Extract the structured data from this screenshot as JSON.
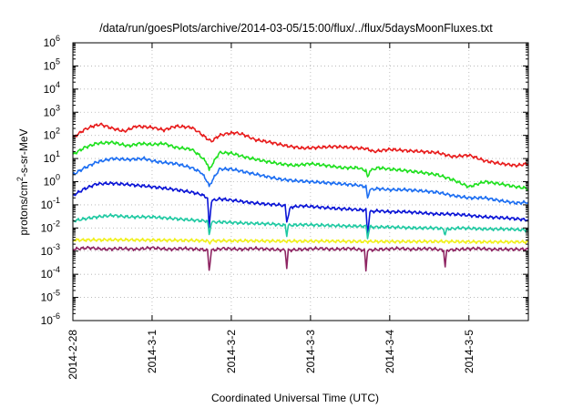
{
  "chart_data": {
    "type": "line",
    "title": "/data/run/goesPlots/archive/2014-03-05/15:00/flux/../flux/5daysMoonFluxes.txt",
    "xlabel": "Coordinated Universal Time (UTC)",
    "ylabel_main": "protons/cm",
    "ylabel_sup": "2",
    "ylabel_rest": "-s-sr-MeV",
    "y_scale": "log",
    "ylim": [
      1e-06,
      1000000.0
    ],
    "xlim": [
      0,
      5.75
    ],
    "x_unit": "days since 2014-2-28 00:00 UTC",
    "grid": true,
    "legend": "none",
    "x_ticks": [
      {
        "x": 0,
        "label": "2014-2-28"
      },
      {
        "x": 1,
        "label": "2014-3-1"
      },
      {
        "x": 2,
        "label": "2014-3-2"
      },
      {
        "x": 3,
        "label": "2014-3-3"
      },
      {
        "x": 4,
        "label": "2014-3-4"
      },
      {
        "x": 5,
        "label": "2014-3-5"
      }
    ],
    "y_ticks": [
      {
        "exp": -6,
        "label_base": "10",
        "label_exp": "-6"
      },
      {
        "exp": -5,
        "label_base": "10",
        "label_exp": "-5"
      },
      {
        "exp": -4,
        "label_base": "10",
        "label_exp": "-4"
      },
      {
        "exp": -3,
        "label_base": "10",
        "label_exp": "-3"
      },
      {
        "exp": -2,
        "label_base": "10",
        "label_exp": "-2"
      },
      {
        "exp": -1,
        "label_base": "10",
        "label_exp": "-1"
      },
      {
        "exp": 0,
        "label_base": "10",
        "label_exp": "0"
      },
      {
        "exp": 1,
        "label_base": "10",
        "label_exp": "1"
      },
      {
        "exp": 2,
        "label_base": "10",
        "label_exp": "2"
      },
      {
        "exp": 3,
        "label_base": "10",
        "label_exp": "3"
      },
      {
        "exp": 4,
        "label_base": "10",
        "label_exp": "4"
      },
      {
        "exp": 5,
        "label_base": "10",
        "label_exp": "5"
      },
      {
        "exp": 6,
        "label_base": "10",
        "label_exp": "6"
      }
    ],
    "series": [
      {
        "color": "#e81c1c",
        "x": [
          0,
          0.15,
          0.25,
          0.35,
          0.5,
          0.65,
          0.8,
          1.0,
          1.15,
          1.3,
          1.5,
          1.6,
          1.7,
          1.75,
          1.85,
          1.95,
          2.05,
          2.15,
          2.3,
          2.5,
          2.7,
          2.9,
          3.1,
          3.3,
          3.5,
          3.7,
          3.8,
          4.0,
          4.2,
          4.4,
          4.6,
          4.8,
          5.0,
          5.2,
          5.4,
          5.6,
          5.75
        ],
        "values": [
          80,
          180,
          250,
          300,
          200,
          150,
          250,
          220,
          170,
          250,
          220,
          130,
          70,
          55,
          100,
          120,
          130,
          110,
          65,
          50,
          35,
          28,
          30,
          33,
          30,
          27,
          20,
          25,
          22,
          20,
          18,
          12,
          14,
          8,
          6,
          5,
          6
        ]
      },
      {
        "color": "#1fe01f",
        "x": [
          0,
          0.15,
          0.3,
          0.5,
          0.7,
          0.85,
          1.0,
          1.15,
          1.3,
          1.5,
          1.62,
          1.7,
          1.72,
          1.75,
          1.85,
          2.0,
          2.2,
          2.4,
          2.6,
          2.8,
          3.0,
          3.2,
          3.4,
          3.6,
          3.7,
          3.72,
          3.75,
          3.85,
          4.0,
          4.2,
          4.4,
          4.6,
          4.8,
          5.0,
          5.2,
          5.4,
          5.6,
          5.75
        ],
        "values": [
          15,
          30,
          45,
          50,
          35,
          45,
          40,
          45,
          30,
          25,
          12,
          6,
          3,
          5,
          18,
          17,
          11,
          8,
          6,
          5,
          6,
          5,
          4,
          4,
          3,
          1.5,
          3,
          4,
          3.5,
          3,
          2.5,
          2,
          1.2,
          0.6,
          1.0,
          0.8,
          0.6,
          0.5
        ]
      },
      {
        "color": "#1c6ef2",
        "x": [
          0,
          0.15,
          0.3,
          0.5,
          0.7,
          0.9,
          1.0,
          1.1,
          1.3,
          1.5,
          1.62,
          1.7,
          1.72,
          1.75,
          1.85,
          2.0,
          2.2,
          2.4,
          2.6,
          2.8,
          3.0,
          3.2,
          3.4,
          3.6,
          3.7,
          3.72,
          3.75,
          3.85,
          4.0,
          4.2,
          4.4,
          4.6,
          4.8,
          5.0,
          5.2,
          5.4,
          5.6,
          5.75
        ],
        "values": [
          2,
          4,
          7,
          10,
          9,
          10,
          8,
          7,
          6,
          4,
          2.5,
          1.0,
          0.6,
          1.0,
          3.5,
          3.5,
          2.5,
          1.8,
          1.3,
          1.1,
          1.0,
          0.9,
          0.8,
          0.7,
          0.6,
          0.2,
          0.45,
          0.5,
          0.45,
          0.45,
          0.4,
          0.35,
          0.25,
          0.2,
          0.2,
          0.15,
          0.12,
          0.13
        ]
      },
      {
        "color": "#0a14d6",
        "x": [
          0,
          0.15,
          0.3,
          0.5,
          0.7,
          0.9,
          1.1,
          1.3,
          1.5,
          1.62,
          1.7,
          1.72,
          1.75,
          1.85,
          2.0,
          2.2,
          2.4,
          2.6,
          2.68,
          2.7,
          2.75,
          2.9,
          3.1,
          3.3,
          3.5,
          3.65,
          3.7,
          3.72,
          3.75,
          3.85,
          4.0,
          4.2,
          4.4,
          4.6,
          4.8,
          5.0,
          5.2,
          5.4,
          5.6,
          5.75
        ],
        "values": [
          0.25,
          0.5,
          0.8,
          0.85,
          0.75,
          0.65,
          0.55,
          0.45,
          0.35,
          0.28,
          0.2,
          0.01,
          0.15,
          0.18,
          0.16,
          0.13,
          0.11,
          0.1,
          0.09,
          0.02,
          0.08,
          0.09,
          0.08,
          0.07,
          0.065,
          0.06,
          0.06,
          0.005,
          0.05,
          0.055,
          0.05,
          0.05,
          0.045,
          0.04,
          0.04,
          0.035,
          0.03,
          0.028,
          0.025,
          0.022
        ]
      },
      {
        "color": "#1fc9a2",
        "x": [
          0,
          0.15,
          0.3,
          0.5,
          0.7,
          1.0,
          1.3,
          1.5,
          1.7,
          1.72,
          1.75,
          1.9,
          2.2,
          2.5,
          2.68,
          2.7,
          2.72,
          2.9,
          3.2,
          3.5,
          3.7,
          3.72,
          3.75,
          4.0,
          4.3,
          4.6,
          4.68,
          4.7,
          4.72,
          4.9,
          5.2,
          5.5,
          5.75
        ],
        "values": [
          0.02,
          0.025,
          0.03,
          0.035,
          0.03,
          0.03,
          0.025,
          0.022,
          0.02,
          0.005,
          0.018,
          0.018,
          0.016,
          0.015,
          0.013,
          0.005,
          0.013,
          0.014,
          0.013,
          0.012,
          0.012,
          0.004,
          0.011,
          0.011,
          0.01,
          0.01,
          0.009,
          0.005,
          0.009,
          0.01,
          0.009,
          0.009,
          0.008
        ]
      },
      {
        "color": "#f0f01c",
        "x": [
          0,
          0.5,
          1.0,
          1.5,
          1.7,
          1.72,
          1.75,
          2.2,
          2.7,
          3.2,
          3.7,
          4.2,
          4.7,
          5.2,
          5.75
        ],
        "values": [
          0.003,
          0.0031,
          0.003,
          0.0029,
          0.0028,
          0.0022,
          0.0028,
          0.0028,
          0.0027,
          0.0027,
          0.0026,
          0.0026,
          0.0026,
          0.0025,
          0.0025
        ]
      },
      {
        "color": "#8e2462",
        "x": [
          0,
          0.2,
          0.4,
          0.6,
          0.8,
          1.0,
          1.2,
          1.4,
          1.6,
          1.7,
          1.72,
          1.75,
          1.9,
          2.1,
          2.3,
          2.5,
          2.68,
          2.7,
          2.72,
          2.9,
          3.1,
          3.3,
          3.5,
          3.68,
          3.7,
          3.72,
          3.9,
          4.1,
          4.3,
          4.5,
          4.68,
          4.7,
          4.72,
          4.9,
          5.1,
          5.3,
          5.5,
          5.75
        ],
        "values": [
          0.0012,
          0.0014,
          0.0012,
          0.0013,
          0.0012,
          0.0014,
          0.0012,
          0.0013,
          0.0012,
          0.0011,
          0.00015,
          0.0011,
          0.0013,
          0.0012,
          0.0013,
          0.0012,
          0.0011,
          0.0002,
          0.0011,
          0.0012,
          0.0013,
          0.0012,
          0.0013,
          0.0011,
          0.00015,
          0.0011,
          0.0012,
          0.0013,
          0.0012,
          0.0013,
          0.0011,
          0.0002,
          0.0011,
          0.0012,
          0.0013,
          0.0012,
          0.0012,
          0.0012
        ]
      }
    ]
  }
}
